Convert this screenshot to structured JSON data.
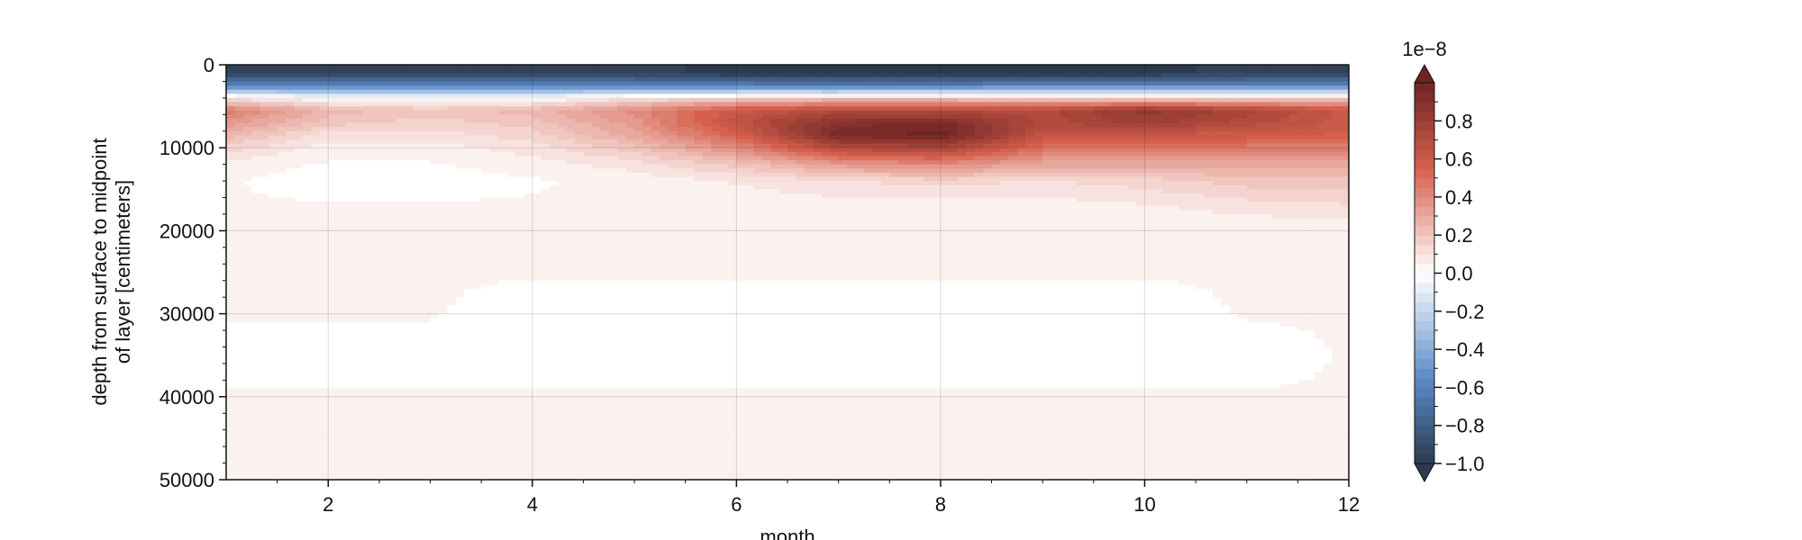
{
  "chart_data": {
    "type": "heatmap",
    "title": "",
    "xlabel": "month",
    "ylabel_lines": [
      "depth from surface to midpoint",
      "of layer [centimeters]"
    ],
    "xlim": [
      1,
      12
    ],
    "ylim": [
      50000,
      0
    ],
    "y_inverted": true,
    "x_ticks": [
      2,
      4,
      6,
      8,
      10,
      12
    ],
    "x_tick_labels": [
      "2",
      "4",
      "6",
      "8",
      "10",
      "12"
    ],
    "y_ticks": [
      0,
      10000,
      20000,
      30000,
      40000,
      50000
    ],
    "y_tick_labels": [
      "0",
      "10000",
      "20000",
      "30000",
      "40000",
      "50000"
    ],
    "grid": true,
    "colormap": "diverging blue-white-red",
    "colors": {
      "negative_extreme": "#2b3a4f",
      "negative": "#5c8bc9",
      "zero": "#ffffff",
      "positive": "#d6604d",
      "positive_extreme": "#6e2424"
    },
    "colorbar": {
      "position": "right",
      "scale_label": "1e−8",
      "range": [
        -1.0,
        1.0
      ],
      "extend": "both",
      "ticks": [
        0.8,
        0.6,
        0.4,
        0.2,
        0.0,
        -0.2,
        -0.4,
        -0.6,
        -0.8,
        -1.0
      ],
      "tick_labels": [
        "0.8",
        "0.6",
        "0.4",
        "0.2",
        "0.0",
        "−0.2",
        "−0.4",
        "−0.6",
        "−0.8",
        "−1.0"
      ]
    },
    "months": [
      1,
      2,
      3,
      4,
      5,
      6,
      7,
      8,
      9,
      10,
      11,
      12
    ],
    "depths": [
      1000,
      2500,
      4000,
      5500,
      7000,
      8500,
      10000,
      12000,
      14000,
      17000,
      20000,
      25000,
      30000,
      35000,
      40000,
      45000,
      50000
    ],
    "values": [
      [
        -0.95,
        -0.95,
        -0.95,
        -0.95,
        -0.95,
        -1.0,
        -1.0,
        -1.0,
        -1.0,
        -1.0,
        -0.95,
        -0.95
      ],
      [
        -0.6,
        -0.6,
        -0.6,
        -0.6,
        -0.6,
        -0.6,
        -0.65,
        -0.65,
        -0.55,
        -0.6,
        -0.6,
        -0.6
      ],
      [
        0.1,
        0.0,
        0.0,
        0.0,
        0.1,
        0.15,
        0.2,
        0.2,
        0.15,
        0.15,
        0.15,
        0.15
      ],
      [
        0.45,
        0.25,
        0.2,
        0.25,
        0.4,
        0.6,
        0.7,
        0.7,
        0.7,
        0.85,
        0.75,
        0.6
      ],
      [
        0.35,
        0.2,
        0.15,
        0.2,
        0.35,
        0.65,
        0.9,
        0.95,
        0.7,
        0.8,
        0.7,
        0.6
      ],
      [
        0.25,
        0.1,
        0.1,
        0.15,
        0.3,
        0.55,
        0.95,
        1.0,
        0.65,
        0.6,
        0.6,
        0.55
      ],
      [
        0.15,
        0.05,
        0.05,
        0.1,
        0.2,
        0.4,
        0.7,
        0.75,
        0.5,
        0.45,
        0.45,
        0.45
      ],
      [
        0.05,
        0.02,
        0.02,
        0.05,
        0.1,
        0.2,
        0.35,
        0.4,
        0.3,
        0.3,
        0.3,
        0.3
      ],
      [
        0.03,
        0.0,
        0.0,
        0.02,
        0.04,
        0.08,
        0.12,
        0.15,
        0.12,
        0.15,
        0.2,
        0.2
      ],
      [
        0.03,
        0.03,
        0.03,
        0.03,
        0.03,
        0.04,
        0.05,
        0.05,
        0.05,
        0.07,
        0.1,
        0.12
      ],
      [
        0.03,
        0.03,
        0.03,
        0.03,
        0.03,
        0.03,
        0.03,
        0.03,
        0.03,
        0.03,
        0.03,
        0.04
      ],
      [
        0.03,
        0.03,
        0.03,
        0.03,
        0.03,
        0.03,
        0.03,
        0.03,
        0.03,
        0.03,
        0.03,
        0.03
      ],
      [
        0.03,
        0.03,
        0.03,
        0.0,
        0.0,
        0.0,
        0.0,
        0.0,
        0.0,
        0.0,
        0.03,
        0.03
      ],
      [
        0.0,
        0.0,
        0.0,
        0.0,
        0.0,
        0.0,
        0.0,
        0.0,
        0.0,
        0.0,
        0.0,
        0.03
      ],
      [
        0.03,
        0.03,
        0.03,
        0.03,
        0.03,
        0.03,
        0.03,
        0.03,
        0.03,
        0.03,
        0.03,
        0.03
      ],
      [
        0.03,
        0.03,
        0.03,
        0.03,
        0.03,
        0.03,
        0.03,
        0.03,
        0.03,
        0.03,
        0.03,
        0.03
      ],
      [
        0.03,
        0.03,
        0.03,
        0.03,
        0.03,
        0.03,
        0.03,
        0.03,
        0.03,
        0.03,
        0.03,
        0.03
      ]
    ]
  }
}
